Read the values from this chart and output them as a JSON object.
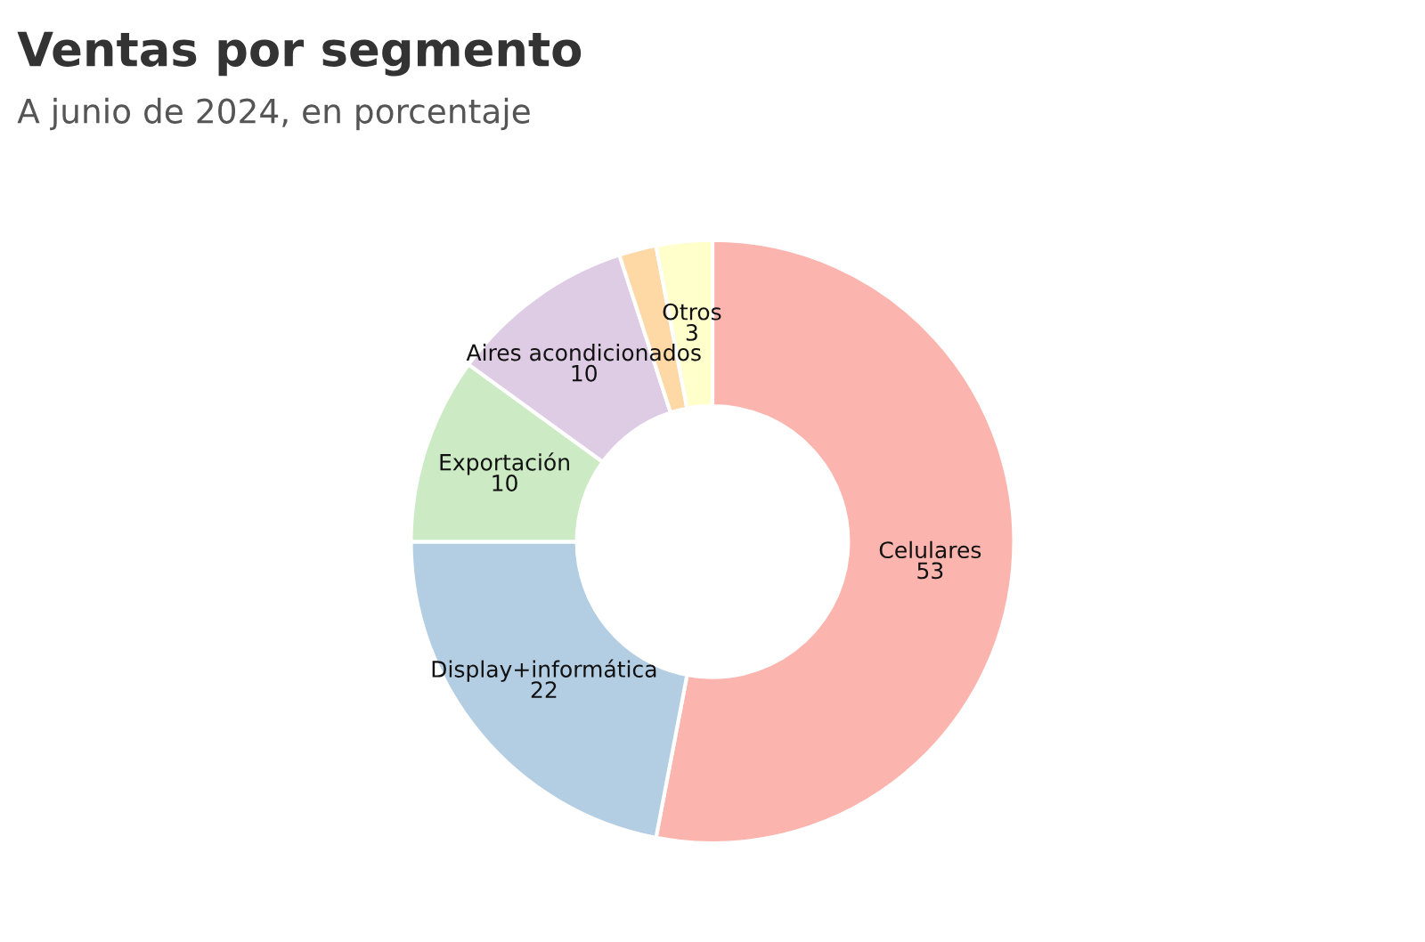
{
  "chart_data": {
    "type": "donut",
    "title": "Ventas por segmento",
    "subtitle": "A junio de 2024, en porcentaje",
    "categories": [
      "Celulares",
      "Display+informática",
      "Exportación",
      "Aires acondicionados",
      null,
      "Otros"
    ],
    "values": [
      53,
      22,
      10,
      10,
      2,
      3
    ],
    "value_labels": [
      "53",
      "22",
      "10",
      "10",
      null,
      "3"
    ],
    "colors": [
      "#fbb4ae",
      "#b3cde3",
      "#ccebc5",
      "#decbe4",
      "#fed9a6",
      "#ffffcc"
    ],
    "legend": false
  }
}
